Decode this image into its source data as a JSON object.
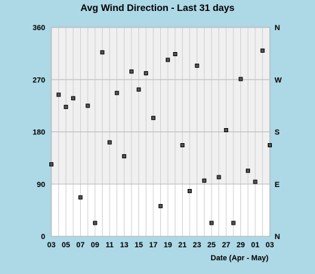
{
  "chart_data": {
    "type": "scatter",
    "title": "Avg Wind Direction - Last 31 days",
    "xlabel": "Date (Apr - May)",
    "ylabel": "",
    "ylim": [
      0,
      360
    ],
    "yticks": [
      "0",
      "90",
      "180",
      "270",
      "360"
    ],
    "y2_labels": [
      "N",
      "E",
      "S",
      "W",
      "N"
    ],
    "xticks": [
      "03",
      "05",
      "07",
      "09",
      "11",
      "13",
      "15",
      "17",
      "19",
      "21",
      "23",
      "25",
      "27",
      "29",
      "01",
      "03"
    ],
    "xlim": [
      "04-03",
      "05-03"
    ],
    "grid": true,
    "colors": {
      "background": "#ADD8E6",
      "plot_bg": "#FFFFFF",
      "band": "#F0F0F0",
      "grid": "#D0D0D0",
      "marker": "#000000"
    },
    "series": [
      {
        "x": [
          "04-03",
          "04-04",
          "04-05",
          "04-06",
          "04-07",
          "04-08",
          "04-09",
          "04-10",
          "04-11",
          "04-12",
          "04-13",
          "04-14",
          "04-15",
          "04-16",
          "04-17",
          "04-18",
          "04-19",
          "04-20",
          "04-21",
          "04-22",
          "04-23",
          "04-24",
          "04-25",
          "04-26",
          "04-27",
          "04-28",
          "04-29",
          "04-30",
          "05-01",
          "05-02",
          "05-03"
        ],
        "values": [
          124,
          244,
          223,
          238,
          67,
          225,
          23,
          317,
          162,
          247,
          138,
          284,
          253,
          281,
          204,
          52,
          304,
          314,
          157,
          78,
          294,
          96,
          23,
          102,
          183,
          23,
          271,
          113,
          94,
          320,
          157
        ]
      }
    ]
  }
}
